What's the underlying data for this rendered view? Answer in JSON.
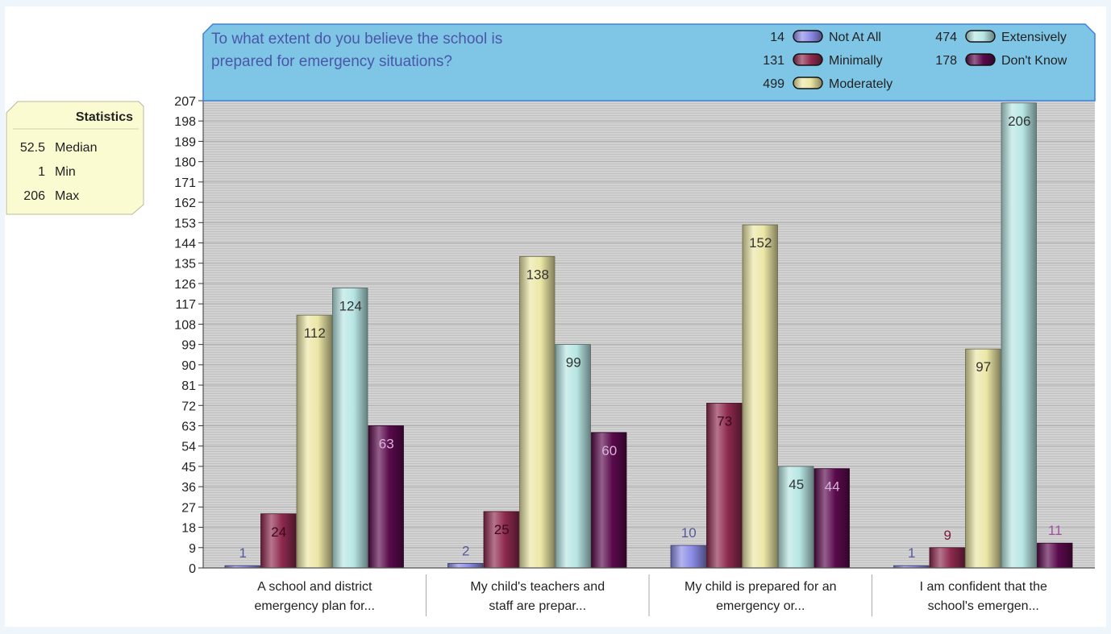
{
  "chart_data": {
    "type": "bar",
    "title": "To what extent do you believe the school is prepared for emergency situations?",
    "categories": [
      [
        "A school and district",
        "emergency plan for..."
      ],
      [
        "My child's teachers and",
        "staff are prepar..."
      ],
      [
        "My child is prepared for an",
        "emergency or..."
      ],
      [
        "I am confident that the",
        "school's emergen..."
      ]
    ],
    "series": [
      {
        "name": "Not At All",
        "total": "14",
        "color": "#8c8ce8",
        "values": [
          1,
          2,
          10,
          1
        ]
      },
      {
        "name": "Minimally",
        "total": "131",
        "color": "#8e2a4e",
        "values": [
          24,
          25,
          73,
          9
        ]
      },
      {
        "name": "Moderately",
        "total": "499",
        "color": "#ece7a6",
        "values": [
          112,
          138,
          152,
          97
        ]
      },
      {
        "name": "Extensively",
        "total": "474",
        "color": "#b7e6e4",
        "values": [
          124,
          99,
          45,
          206
        ]
      },
      {
        "name": "Don't Know",
        "total": "178",
        "color": "#5a0a4c",
        "values": [
          63,
          60,
          44,
          11
        ]
      }
    ],
    "ylim": [
      0,
      207
    ],
    "yticks": [
      0,
      9,
      18,
      27,
      36,
      45,
      54,
      63,
      72,
      81,
      90,
      99,
      108,
      117,
      126,
      135,
      144,
      153,
      162,
      171,
      180,
      189,
      198,
      207
    ],
    "xlabel": "",
    "ylabel": "",
    "legend_placement": "top-right",
    "grid": true
  },
  "statistics": {
    "title": "Statistics",
    "rows": [
      {
        "value": "52.5",
        "label": "Median"
      },
      {
        "value": "1",
        "label": "Min"
      },
      {
        "value": "206",
        "label": "Max"
      }
    ]
  }
}
